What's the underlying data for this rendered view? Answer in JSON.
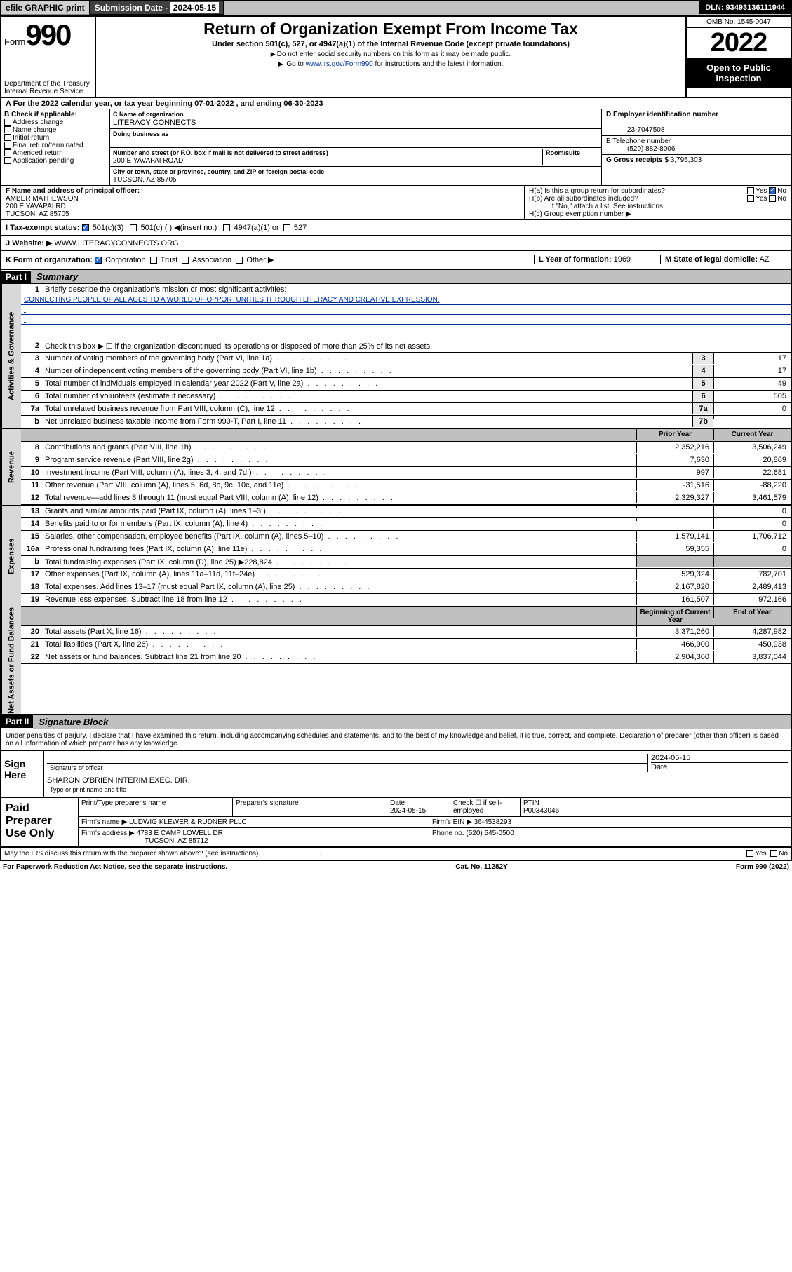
{
  "topbar": {
    "efile": "efile GRAPHIC print",
    "subdate_label": "Submission Date - ",
    "subdate": "2024-05-15",
    "dln": "DLN: 93493136111944"
  },
  "header": {
    "form_word": "Form",
    "form_num": "990",
    "dept": "Department of the Treasury\nInternal Revenue Service",
    "title": "Return of Organization Exempt From Income Tax",
    "sub": "Under section 501(c), 527, or 4947(a)(1) of the Internal Revenue Code (except private foundations)",
    "note1": "Do not enter social security numbers on this form as it may be made public.",
    "note2_a": "Go to ",
    "note2_link": "www.irs.gov/Form990",
    "note2_b": " for instructions and the latest information.",
    "omb": "OMB No. 1545-0047",
    "year": "2022",
    "otp": "Open to Public Inspection"
  },
  "A": {
    "text": "A For the 2022 calendar year, or tax year beginning 07-01-2022     , and ending 06-30-2023"
  },
  "B": {
    "title": "B Check if applicable:",
    "items": [
      "Address change",
      "Name change",
      "Initial return",
      "Final return/terminated",
      "Amended return",
      "Application pending"
    ]
  },
  "C": {
    "name_label": "C Name of organization",
    "name": "LITERACY CONNECTS",
    "dba_label": "Doing business as",
    "addr_label": "Number and street (or P.O. box if mail is not delivered to street address)",
    "room_label": "Room/suite",
    "addr": "200 E YAVAPAI ROAD",
    "city_label": "City or town, state or province, country, and ZIP or foreign postal code",
    "city": "TUCSON, AZ  85705"
  },
  "D": {
    "label": "D Employer identification number",
    "val": "23-7047508"
  },
  "E": {
    "label": "E Telephone number",
    "val": "(520) 882-8006"
  },
  "G": {
    "label": "G Gross receipts $",
    "val": "3,795,303"
  },
  "F": {
    "label": "F  Name and address of principal officer:",
    "name": "AMBER MATHEWSON",
    "addr": "200 E YAVAPAI RD",
    "city": "TUCSON, AZ  85705"
  },
  "H": {
    "a": "H(a)  Is this a group return for subordinates?",
    "b": "H(b)  Are all subordinates included?",
    "b_note": "If \"No,\" attach a list. See instructions.",
    "c": "H(c)  Group exemption number ▶",
    "yes": "Yes",
    "no": "No"
  },
  "I": {
    "label": "I  Tax-exempt status:",
    "opts": [
      "501(c)(3)",
      "501(c) (  ) ◀(insert no.)",
      "4947(a)(1) or",
      "527"
    ]
  },
  "J": {
    "label": "J  Website: ▶",
    "val": "WWW.LITERACYCONNECTS.ORG"
  },
  "K": {
    "label": "K Form of organization:",
    "opts": [
      "Corporation",
      "Trust",
      "Association",
      "Other ▶"
    ]
  },
  "L": {
    "label": "L Year of formation:",
    "val": "1969"
  },
  "M": {
    "label": "M State of legal domicile:",
    "val": "AZ"
  },
  "part1": {
    "hdr": "Part I",
    "title": "Summary",
    "side_gov": "Activities & Governance",
    "side_rev": "Revenue",
    "side_exp": "Expenses",
    "side_net": "Net Assets or Fund Balances",
    "l1_label": "Briefly describe the organization's mission or most significant activities:",
    "mission": "CONNECTING PEOPLE OF ALL AGES TO A WORLD OF OPPORTUNITIES THROUGH LITERACY AND CREATIVE EXPRESSION.",
    "l2": "Check this box ▶ ☐  if the organization discontinued its operations or disposed of more than 25% of its net assets.",
    "lines_gov": [
      {
        "n": "3",
        "t": "Number of voting members of the governing body (Part VI, line 1a)",
        "box": "3",
        "v": "17"
      },
      {
        "n": "4",
        "t": "Number of independent voting members of the governing body (Part VI, line 1b)",
        "box": "4",
        "v": "17"
      },
      {
        "n": "5",
        "t": "Total number of individuals employed in calendar year 2022 (Part V, line 2a)",
        "box": "5",
        "v": "49"
      },
      {
        "n": "6",
        "t": "Total number of volunteers (estimate if necessary)",
        "box": "6",
        "v": "505"
      },
      {
        "n": "7a",
        "t": "Total unrelated business revenue from Part VIII, column (C), line 12",
        "box": "7a",
        "v": "0"
      },
      {
        "n": "b",
        "t": "Net unrelated business taxable income from Form 990-T, Part I, line 11",
        "box": "7b",
        "v": ""
      }
    ],
    "col_py": "Prior Year",
    "col_cy": "Current Year",
    "lines_rev": [
      {
        "n": "8",
        "t": "Contributions and grants (Part VIII, line 1h)",
        "py": "2,352,216",
        "cy": "3,506,249"
      },
      {
        "n": "9",
        "t": "Program service revenue (Part VIII, line 2g)",
        "py": "7,630",
        "cy": "20,869"
      },
      {
        "n": "10",
        "t": "Investment income (Part VIII, column (A), lines 3, 4, and 7d )",
        "py": "997",
        "cy": "22,681"
      },
      {
        "n": "11",
        "t": "Other revenue (Part VIII, column (A), lines 5, 6d, 8c, 9c, 10c, and 11e)",
        "py": "-31,516",
        "cy": "-88,220"
      },
      {
        "n": "12",
        "t": "Total revenue—add lines 8 through 11 (must equal Part VIII, column (A), line 12)",
        "py": "2,329,327",
        "cy": "3,461,579"
      }
    ],
    "lines_exp": [
      {
        "n": "13",
        "t": "Grants and similar amounts paid (Part IX, column (A), lines 1–3 )",
        "py": "",
        "cy": "0"
      },
      {
        "n": "14",
        "t": "Benefits paid to or for members (Part IX, column (A), line 4)",
        "py": "",
        "cy": "0"
      },
      {
        "n": "15",
        "t": "Salaries, other compensation, employee benefits (Part IX, column (A), lines 5–10)",
        "py": "1,579,141",
        "cy": "1,706,712"
      },
      {
        "n": "16a",
        "t": "Professional fundraising fees (Part IX, column (A), line 11e)",
        "py": "59,355",
        "cy": "0"
      },
      {
        "n": "b",
        "t": "Total fundraising expenses (Part IX, column (D), line 25) ▶228,824",
        "py": "gray",
        "cy": "gray"
      },
      {
        "n": "17",
        "t": "Other expenses (Part IX, column (A), lines 11a–11d, 11f–24e)",
        "py": "529,324",
        "cy": "782,701"
      },
      {
        "n": "18",
        "t": "Total expenses. Add lines 13–17 (must equal Part IX, column (A), line 25)",
        "py": "2,167,820",
        "cy": "2,489,413"
      },
      {
        "n": "19",
        "t": "Revenue less expenses. Subtract line 18 from line 12",
        "py": "161,507",
        "cy": "972,166"
      }
    ],
    "col_beg": "Beginning of Current Year",
    "col_end": "End of Year",
    "lines_net": [
      {
        "n": "20",
        "t": "Total assets (Part X, line 16)",
        "py": "3,371,260",
        "cy": "4,287,982"
      },
      {
        "n": "21",
        "t": "Total liabilities (Part X, line 26)",
        "py": "466,900",
        "cy": "450,938"
      },
      {
        "n": "22",
        "t": "Net assets or fund balances. Subtract line 21 from line 20",
        "py": "2,904,360",
        "cy": "3,837,044"
      }
    ]
  },
  "part2": {
    "hdr": "Part II",
    "title": "Signature Block",
    "decl": "Under penalties of perjury, I declare that I have examined this return, including accompanying schedules and statements, and to the best of my knowledge and belief, it is true, correct, and complete. Declaration of preparer (other than officer) is based on all information of which preparer has any knowledge."
  },
  "sign": {
    "label": "Sign Here",
    "sig_of": "Signature of officer",
    "date": "2024-05-15",
    "date_lab": "Date",
    "name": "SHARON O'BRIEN  INTERIM EXEC. DIR.",
    "name_lab": "Type or print name and title"
  },
  "prep": {
    "label": "Paid Preparer Use Only",
    "h1": "Print/Type preparer's name",
    "h2": "Preparer's signature",
    "h3": "Date",
    "h3v": "2024-05-15",
    "h4": "Check ☐ if self-employed",
    "h5": "PTIN",
    "h5v": "P00343046",
    "firm_lab": "Firm's name     ▶",
    "firm": "LUDWIG KLEWER & RUDNER PLLC",
    "ein_lab": "Firm's EIN ▶",
    "ein": "36-4538293",
    "addr_lab": "Firm's address ▶",
    "addr": "4783 E CAMP LOWELL DR",
    "city": "TUCSON, AZ  85712",
    "phone_lab": "Phone no.",
    "phone": "(520) 545-0500"
  },
  "foot": {
    "q": "May the IRS discuss this return with the preparer shown above? (see instructions)",
    "yes": "Yes",
    "no": "No",
    "pra": "For Paperwork Reduction Act Notice, see the separate instructions.",
    "cat": "Cat. No. 11282Y",
    "form": "Form 990 (2022)"
  },
  "colors": {
    "link": "#003399",
    "check": "#2266cc",
    "gray": "#c0c0c0"
  }
}
